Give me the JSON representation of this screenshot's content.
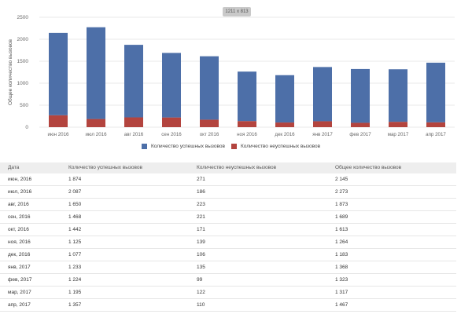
{
  "badge": "1211 x 813",
  "colors": {
    "success": "#4d6fa8",
    "failure": "#b3443e"
  },
  "chart_data": {
    "type": "bar",
    "stacked": true,
    "categories": [
      "июн 2016",
      "июл 2016",
      "авг 2016",
      "сен 2016",
      "окт 2016",
      "ноя 2016",
      "дек 2016",
      "янв 2017",
      "фев 2017",
      "мар 2017",
      "апр 2017"
    ],
    "series": [
      {
        "name": "Количество успешных вызовов",
        "values": [
          1874,
          2087,
          1650,
          1468,
          1442,
          1125,
          1077,
          1233,
          1224,
          1195,
          1357
        ]
      },
      {
        "name": "Количество неуспешных вызовов",
        "values": [
          271,
          186,
          223,
          221,
          171,
          139,
          106,
          135,
          99,
          122,
          110
        ]
      }
    ],
    "ylabel": "Общее количество вызовов",
    "ylim": [
      0,
      2500
    ],
    "yticks": [
      0,
      500,
      1000,
      1500,
      2000,
      2500
    ],
    "grid": true,
    "legend": "bottom"
  },
  "legend": {
    "success": "Количество успешных вызовов",
    "failure": "Количество неуспешных вызовов"
  },
  "table": {
    "headers": [
      "Дата",
      "Количество успешных вызовов",
      "Количество неуспешных вызовов",
      "Общее количество вызовов"
    ],
    "rows": [
      [
        "июн, 2016",
        "1 874",
        "271",
        "2 145"
      ],
      [
        "июл, 2016",
        "2 087",
        "186",
        "2 273"
      ],
      [
        "авг, 2016",
        "1 650",
        "223",
        "1 873"
      ],
      [
        "сен, 2016",
        "1 468",
        "221",
        "1 689"
      ],
      [
        "окт, 2016",
        "1 442",
        "171",
        "1 613"
      ],
      [
        "ноя, 2016",
        "1 125",
        "139",
        "1 264"
      ],
      [
        "дек, 2016",
        "1 077",
        "106",
        "1 183"
      ],
      [
        "янв, 2017",
        "1 233",
        "135",
        "1 368"
      ],
      [
        "фев, 2017",
        "1 224",
        "99",
        "1 323"
      ],
      [
        "мар, 2017",
        "1 195",
        "122",
        "1 317"
      ],
      [
        "апр, 2017",
        "1 357",
        "110",
        "1 467"
      ]
    ]
  }
}
